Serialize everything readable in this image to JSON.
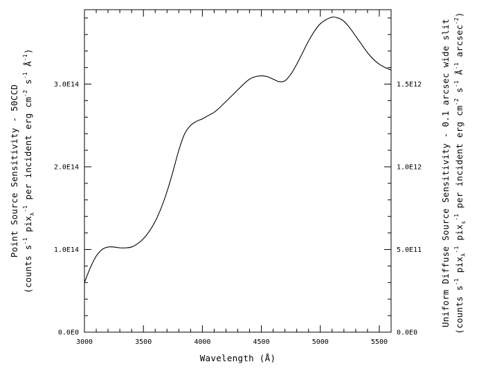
{
  "chart_data": {
    "type": "line",
    "title": "",
    "xlabel": "Wavelength (Å)",
    "ylabel_left": {
      "line1": "Point Source Sensitivity - 50CCD",
      "line2": {
        "a": "(counts s",
        "a_sup": "-1",
        "b": "  pix",
        "b_sub": "λ",
        "b_sup": "-1",
        "c": "  per incident erg cm",
        "c_sup": "-2",
        "d": " s",
        "d_sup": "-1",
        "e": " Å",
        "e_sup": "-1",
        "f": ")"
      }
    },
    "ylabel_right": {
      "line1": "Uniform Diffuse Source Sensitivity - 0.1 arcsec wide slit",
      "line2": {
        "a": "(counts s",
        "a_sup": "-1",
        "b": "  pix",
        "b_sub": "λ",
        "b_sup": "-1",
        "c": "  pix",
        "c_sub": "s",
        "c_sup": "-1",
        "d": "  per incident erg cm",
        "d_sup": "-2",
        "e": " s",
        "e_sup": "-1",
        "f": " Å",
        "f_sup": "-1",
        "g": " arcsec",
        "g_sup": "-2",
        "h": ")"
      }
    },
    "xlim": [
      3000,
      5600
    ],
    "ylim": [
      0,
      390000000000000.0
    ],
    "ylim_right": [
      0,
      1950000000000.0
    ],
    "x_ticks": [
      3000,
      3500,
      4000,
      4500,
      5000,
      5500
    ],
    "x_tick_labels": [
      "3000",
      "3500",
      "4000",
      "4500",
      "5000",
      "5500"
    ],
    "y_ticks": [
      0,
      100000000000000.0,
      200000000000000.0,
      300000000000000.0
    ],
    "y_tick_labels": [
      "0.0E0",
      "1.0E14",
      "2.0E14",
      "3.0E14"
    ],
    "y_ticks_right": [
      0,
      500000000000.0,
      1000000000000.0,
      1500000000000.0
    ],
    "y_tick_labels_right": [
      "0.0E0",
      "5.0E11",
      "1.0E12",
      "1.5E12"
    ],
    "grid": false,
    "series": [
      {
        "x": [
          3000,
          3050,
          3100,
          3150,
          3200,
          3250,
          3300,
          3350,
          3400,
          3450,
          3500,
          3550,
          3600,
          3650,
          3700,
          3750,
          3800,
          3850,
          3900,
          3950,
          4000,
          4050,
          4100,
          4150,
          4200,
          4250,
          4300,
          4350,
          4400,
          4450,
          4500,
          4550,
          4600,
          4650,
          4700,
          4750,
          4800,
          4850,
          4900,
          4950,
          5000,
          5050,
          5100,
          5150,
          5200,
          5250,
          5300,
          5350,
          5400,
          5450,
          5500,
          5550,
          5600
        ],
        "values": [
          60000000000000.0,
          78000000000000.0,
          92000000000000.0,
          100000000000000.0,
          103000000000000.0,
          103000000000000.0,
          102000000000000.0,
          102000000000000.0,
          103000000000000.0,
          107000000000000.0,
          113000000000000.0,
          122000000000000.0,
          134000000000000.0,
          150000000000000.0,
          170000000000000.0,
          194000000000000.0,
          220000000000000.0,
          240000000000000.0,
          250000000000000.0,
          255000000000000.0,
          258000000000000.0,
          262000000000000.0,
          266000000000000.0,
          272000000000000.0,
          279000000000000.0,
          286000000000000.0,
          293000000000000.0,
          300000000000000.0,
          306000000000000.0,
          309000000000000.0,
          310000000000000.0,
          309000000000000.0,
          306000000000000.0,
          303000000000000.0,
          304000000000000.0,
          312000000000000.0,
          324000000000000.0,
          338000000000000.0,
          352000000000000.0,
          364000000000000.0,
          373000000000000.0,
          378000000000000.0,
          381000000000000.0,
          380000000000000.0,
          376000000000000.0,
          368000000000000.0,
          358000000000000.0,
          348000000000000.0,
          338000000000000.0,
          330000000000000.0,
          324000000000000.0,
          320000000000000.0,
          317000000000000.0
        ]
      }
    ]
  }
}
